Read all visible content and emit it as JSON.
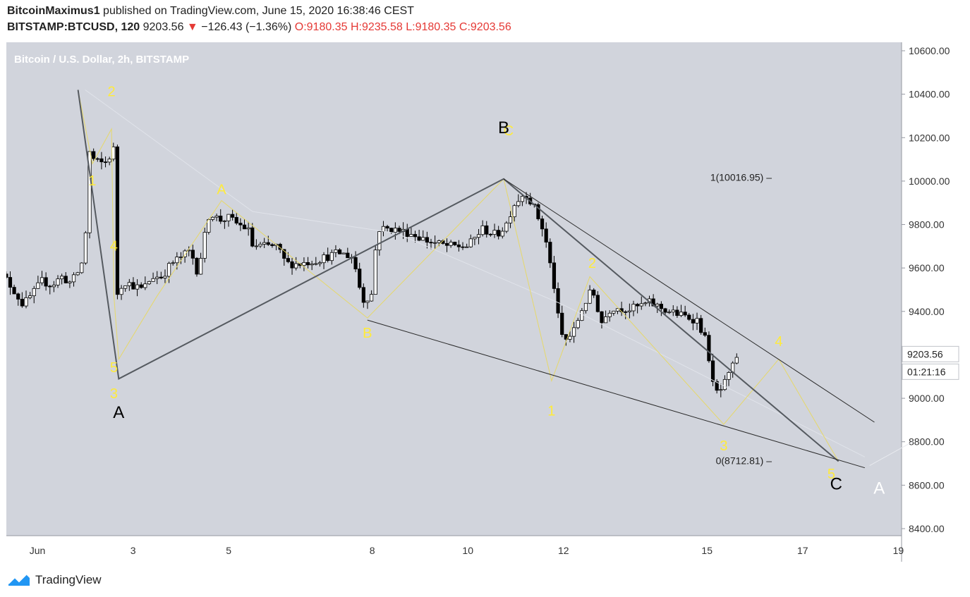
{
  "header": {
    "author": "BitcoinMaximus1",
    "published_text": "published on TradingView.com, June 15, 2020 16:38:46 CEST",
    "symbol": "BITSTAMP:BTCUSD, 120",
    "last": "9203.56",
    "change_arrow": "▼",
    "change": "−126.43 (−1.36%)",
    "open_label": "O:",
    "open": "9180.35",
    "high_label": "H:",
    "high": "9235.58",
    "low_label": "L:",
    "low": "9180.35",
    "close_label": "C:",
    "close": "9203.56"
  },
  "chart_data": {
    "type": "candlestick",
    "title": "Bitcoin / U.S. Dollar, 2h, BITSTAMP",
    "ylim": [
      8400,
      10600
    ],
    "y_ticks": [
      "10600.00",
      "10400.00",
      "10200.00",
      "10000.00",
      "9800.00",
      "9600.00",
      "9400.00",
      "9200.00",
      "9000.00",
      "8800.00",
      "8600.00",
      "8400.00"
    ],
    "x_ticks": [
      {
        "label": "Jun",
        "day": 1
      },
      {
        "label": "3",
        "day": 3
      },
      {
        "label": "5",
        "day": 5
      },
      {
        "label": "8",
        "day": 8
      },
      {
        "label": "10",
        "day": 10
      },
      {
        "label": "12",
        "day": 12
      },
      {
        "label": "15",
        "day": 15
      },
      {
        "label": "17",
        "day": 17
      },
      {
        "label": "19",
        "day": 19
      }
    ],
    "price_label": "9203.56",
    "countdown_label": "01:21:16",
    "fib_levels": [
      {
        "label": "1(10016.95)",
        "price": 10016.95
      },
      {
        "label": "0(8712.81)",
        "price": 8712.81
      }
    ],
    "candles_anchor_path": [
      [
        0.1,
        9570
      ],
      [
        0.3,
        9560
      ],
      [
        0.5,
        9500
      ],
      [
        0.7,
        9430
      ],
      [
        0.9,
        9480
      ],
      [
        1.1,
        9540
      ],
      [
        1.3,
        9520
      ],
      [
        1.5,
        9560
      ],
      [
        1.7,
        9530
      ],
      [
        1.9,
        9600
      ],
      [
        2.0,
        9680
      ],
      [
        2.05,
        10150
      ],
      [
        2.2,
        10090
      ],
      [
        2.4,
        10080
      ],
      [
        2.5,
        10110
      ],
      [
        2.6,
        10150
      ],
      [
        2.62,
        9460
      ],
      [
        2.8,
        9540
      ],
      [
        3.0,
        9520
      ],
      [
        3.2,
        9500
      ],
      [
        3.4,
        9560
      ],
      [
        3.6,
        9560
      ],
      [
        3.8,
        9620
      ],
      [
        4.0,
        9650
      ],
      [
        4.2,
        9680
      ],
      [
        4.35,
        9580
      ],
      [
        4.6,
        9860
      ],
      [
        4.8,
        9820
      ],
      [
        5.0,
        9830
      ],
      [
        5.2,
        9800
      ],
      [
        5.4,
        9780
      ],
      [
        5.5,
        9700
      ],
      [
        5.7,
        9700
      ],
      [
        6.0,
        9700
      ],
      [
        6.2,
        9620
      ],
      [
        6.5,
        9620
      ],
      [
        6.9,
        9640
      ],
      [
        7.3,
        9670
      ],
      [
        7.6,
        9650
      ],
      [
        7.8,
        9450
      ],
      [
        8.0,
        9480
      ],
      [
        8.1,
        9780
      ],
      [
        8.4,
        9780
      ],
      [
        8.8,
        9760
      ],
      [
        9.2,
        9720
      ],
      [
        9.6,
        9700
      ],
      [
        10.0,
        9700
      ],
      [
        10.3,
        9780
      ],
      [
        10.6,
        9750
      ],
      [
        10.8,
        9800
      ],
      [
        10.95,
        9890
      ],
      [
        11.2,
        9950
      ],
      [
        11.4,
        9870
      ],
      [
        11.6,
        9760
      ],
      [
        11.8,
        9520
      ],
      [
        11.9,
        9350
      ],
      [
        12.0,
        9260
      ],
      [
        12.2,
        9300
      ],
      [
        12.4,
        9420
      ],
      [
        12.6,
        9500
      ],
      [
        12.8,
        9350
      ],
      [
        13.0,
        9420
      ],
      [
        13.4,
        9410
      ],
      [
        13.8,
        9440
      ],
      [
        14.2,
        9400
      ],
      [
        14.5,
        9380
      ],
      [
        14.8,
        9360
      ],
      [
        15.0,
        9250
      ],
      [
        15.15,
        9020
      ],
      [
        15.3,
        9040
      ],
      [
        15.5,
        9120
      ],
      [
        15.6,
        9190
      ],
      [
        15.7,
        9203.56
      ]
    ],
    "labels_yellow": [
      {
        "text": "2",
        "day": 2.55,
        "price": 10390
      },
      {
        "text": "1",
        "day": 2.15,
        "price": 9980
      },
      {
        "text": "4",
        "day": 2.6,
        "price": 9680
      },
      {
        "text": "5",
        "day": 2.6,
        "price": 9120
      },
      {
        "text": "3",
        "day": 2.6,
        "price": 9000
      },
      {
        "text": "A",
        "day": 4.85,
        "price": 9940
      },
      {
        "text": "B",
        "day": 7.9,
        "price": 9280
      },
      {
        "text": "C",
        "day": 10.85,
        "price": 10210
      },
      {
        "text": "2",
        "day": 12.6,
        "price": 9600
      },
      {
        "text": "1",
        "day": 11.75,
        "price": 8920
      },
      {
        "text": "3",
        "day": 15.35,
        "price": 8760
      },
      {
        "text": "4",
        "day": 16.5,
        "price": 9240
      },
      {
        "text": "5",
        "day": 17.6,
        "price": 8630
      }
    ],
    "labels_black": [
      {
        "text": "A",
        "day": 2.7,
        "price": 8910
      },
      {
        "text": "B",
        "day": 10.75,
        "price": 10220
      },
      {
        "text": "C",
        "day": 17.7,
        "price": 8580
      }
    ],
    "labels_white": [
      {
        "text": "A",
        "day": 18.6,
        "price": 8560
      }
    ],
    "dark_wave": [
      [
        1.85,
        10420
      ],
      [
        2.7,
        9090
      ],
      [
        10.75,
        10010
      ],
      [
        17.75,
        8710
      ]
    ],
    "channel_upper": [
      [
        10.75,
        10010
      ],
      [
        18.5,
        8890
      ]
    ],
    "channel_lower": [
      [
        7.9,
        9360
      ],
      [
        18.3,
        8680
      ]
    ],
    "yellow_path_1": [
      [
        1.85,
        10420
      ],
      [
        2.15,
        10080
      ],
      [
        2.55,
        10240
      ],
      [
        2.6,
        9470
      ],
      [
        2.7,
        9180
      ],
      [
        3.5,
        9470
      ],
      [
        4.85,
        9910
      ],
      [
        7.9,
        9370
      ],
      [
        10.75,
        10010
      ],
      [
        11.75,
        9080
      ],
      [
        12.55,
        9560
      ],
      [
        15.35,
        8880
      ],
      [
        16.5,
        9180
      ],
      [
        17.75,
        8710
      ]
    ],
    "gray_faint": [
      [
        2.0,
        10420
      ],
      [
        5.5,
        9860
      ],
      [
        8.5,
        9760
      ],
      [
        12.0,
        9430
      ],
      [
        18.3,
        8730
      ]
    ],
    "white_faint": [
      [
        18.4,
        8690
      ],
      [
        19.3,
        8800
      ]
    ]
  },
  "footer": {
    "brand": "TradingView"
  },
  "colors": {
    "bg": "#d1d4dc",
    "up": "#ffffff",
    "down": "#000000",
    "yellow": "#ffeb3b",
    "red": "#e53935"
  }
}
